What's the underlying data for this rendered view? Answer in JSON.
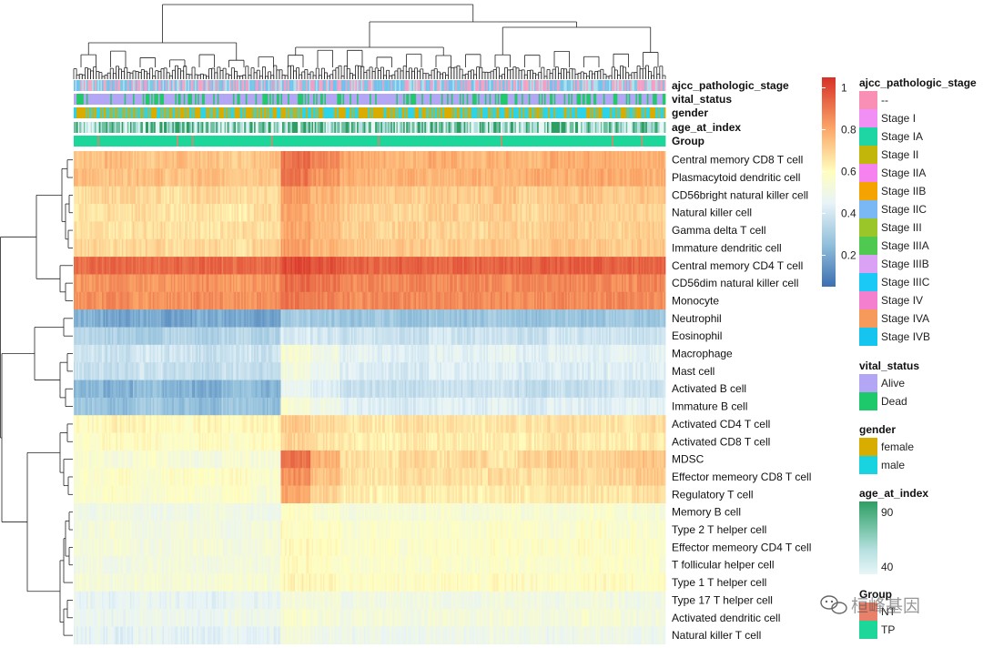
{
  "chart_data": {
    "type": "heatmap",
    "title": "",
    "rows": [
      "Central memory CD8 T cell",
      "Plasmacytoid dendritic cell",
      "CD56bright natural killer cell",
      "Natural killer cell",
      "Gamma delta T cell",
      "Immature dendritic cell",
      "Central memory CD4 T cell",
      "CD56dim natural killer cell",
      "Monocyte",
      "Neutrophil",
      "Eosinophil",
      "Macrophage",
      "Mast cell",
      "Activated B cell",
      "Immature  B cell",
      "Activated CD4 T cell",
      "Activated CD8 T cell",
      "MDSC",
      "Effector memeory CD8 T cell",
      "Regulatory T cell",
      "Memory B cell",
      "Type 2 T helper cell",
      "Effector memeory CD4 T cell",
      "T follicular helper cell",
      "Type 1 T helper cell",
      "Type 17 T helper cell",
      "Activated dendritic cell",
      "Natural killer T cell"
    ],
    "values": [
      [
        0.74,
        0.76,
        0.73,
        0.75,
        0.74,
        0.72,
        0.75,
        0.92,
        0.86,
        0.8,
        0.78,
        0.77,
        0.79,
        0.76,
        0.78,
        0.77,
        0.79,
        0.8,
        0.78,
        0.79
      ],
      [
        0.75,
        0.74,
        0.76,
        0.73,
        0.75,
        0.74,
        0.73,
        0.9,
        0.84,
        0.79,
        0.77,
        0.78,
        0.76,
        0.78,
        0.77,
        0.79,
        0.78,
        0.8,
        0.79,
        0.78
      ],
      [
        0.68,
        0.7,
        0.69,
        0.67,
        0.7,
        0.68,
        0.69,
        0.82,
        0.78,
        0.73,
        0.72,
        0.71,
        0.73,
        0.72,
        0.74,
        0.71,
        0.73,
        0.74,
        0.72,
        0.73
      ],
      [
        0.66,
        0.67,
        0.68,
        0.66,
        0.67,
        0.65,
        0.68,
        0.8,
        0.76,
        0.71,
        0.7,
        0.69,
        0.71,
        0.7,
        0.72,
        0.69,
        0.71,
        0.72,
        0.7,
        0.71
      ],
      [
        0.67,
        0.66,
        0.68,
        0.67,
        0.66,
        0.68,
        0.67,
        0.8,
        0.75,
        0.71,
        0.7,
        0.71,
        0.7,
        0.69,
        0.71,
        0.7,
        0.72,
        0.71,
        0.7,
        0.72
      ],
      [
        0.69,
        0.68,
        0.7,
        0.68,
        0.69,
        0.67,
        0.7,
        0.82,
        0.77,
        0.73,
        0.72,
        0.73,
        0.71,
        0.72,
        0.73,
        0.72,
        0.74,
        0.73,
        0.72,
        0.73
      ],
      [
        0.93,
        0.94,
        0.92,
        0.93,
        0.94,
        0.92,
        0.93,
        1.0,
        0.97,
        0.95,
        0.94,
        0.95,
        0.94,
        0.95,
        0.94,
        0.95,
        0.96,
        0.95,
        0.94,
        0.95
      ],
      [
        0.84,
        0.85,
        0.83,
        0.84,
        0.85,
        0.83,
        0.84,
        0.93,
        0.9,
        0.87,
        0.86,
        0.87,
        0.86,
        0.87,
        0.86,
        0.87,
        0.88,
        0.87,
        0.86,
        0.87
      ],
      [
        0.85,
        0.86,
        0.84,
        0.85,
        0.86,
        0.84,
        0.85,
        0.9,
        0.88,
        0.86,
        0.87,
        0.86,
        0.87,
        0.86,
        0.87,
        0.86,
        0.87,
        0.86,
        0.87,
        0.86
      ],
      [
        0.22,
        0.18,
        0.2,
        0.17,
        0.21,
        0.19,
        0.18,
        0.3,
        0.28,
        0.27,
        0.29,
        0.26,
        0.28,
        0.27,
        0.29,
        0.26,
        0.28,
        0.27,
        0.29,
        0.28
      ],
      [
        0.34,
        0.32,
        0.3,
        0.33,
        0.31,
        0.34,
        0.32,
        0.42,
        0.4,
        0.38,
        0.39,
        0.37,
        0.4,
        0.38,
        0.39,
        0.37,
        0.4,
        0.38,
        0.39,
        0.38
      ],
      [
        0.4,
        0.38,
        0.41,
        0.39,
        0.37,
        0.4,
        0.38,
        0.55,
        0.5,
        0.45,
        0.44,
        0.43,
        0.45,
        0.44,
        0.46,
        0.43,
        0.45,
        0.44,
        0.46,
        0.45
      ],
      [
        0.38,
        0.36,
        0.39,
        0.37,
        0.35,
        0.38,
        0.36,
        0.52,
        0.48,
        0.43,
        0.42,
        0.41,
        0.43,
        0.42,
        0.44,
        0.41,
        0.43,
        0.42,
        0.44,
        0.43
      ],
      [
        0.24,
        0.21,
        0.26,
        0.22,
        0.2,
        0.25,
        0.22,
        0.48,
        0.44,
        0.38,
        0.37,
        0.36,
        0.38,
        0.37,
        0.39,
        0.36,
        0.38,
        0.37,
        0.39,
        0.38
      ],
      [
        0.28,
        0.25,
        0.3,
        0.26,
        0.24,
        0.29,
        0.26,
        0.55,
        0.5,
        0.44,
        0.43,
        0.42,
        0.44,
        0.43,
        0.45,
        0.42,
        0.44,
        0.43,
        0.45,
        0.44
      ],
      [
        0.6,
        0.62,
        0.61,
        0.59,
        0.62,
        0.6,
        0.61,
        0.72,
        0.68,
        0.66,
        0.65,
        0.67,
        0.66,
        0.65,
        0.67,
        0.66,
        0.68,
        0.67,
        0.66,
        0.67
      ],
      [
        0.58,
        0.6,
        0.59,
        0.57,
        0.6,
        0.58,
        0.59,
        0.7,
        0.66,
        0.64,
        0.63,
        0.65,
        0.64,
        0.63,
        0.65,
        0.64,
        0.66,
        0.65,
        0.64,
        0.65
      ],
      [
        0.55,
        0.53,
        0.56,
        0.54,
        0.52,
        0.55,
        0.53,
        0.92,
        0.78,
        0.68,
        0.66,
        0.7,
        0.67,
        0.69,
        0.66,
        0.7,
        0.72,
        0.69,
        0.71,
        0.74
      ],
      [
        0.57,
        0.59,
        0.56,
        0.58,
        0.57,
        0.59,
        0.56,
        0.85,
        0.74,
        0.67,
        0.66,
        0.68,
        0.67,
        0.66,
        0.68,
        0.67,
        0.69,
        0.68,
        0.7,
        0.72
      ],
      [
        0.56,
        0.58,
        0.55,
        0.57,
        0.56,
        0.58,
        0.55,
        0.8,
        0.7,
        0.64,
        0.63,
        0.65,
        0.64,
        0.63,
        0.65,
        0.64,
        0.66,
        0.65,
        0.66,
        0.67
      ],
      [
        0.5,
        0.51,
        0.49,
        0.5,
        0.52,
        0.5,
        0.49,
        0.58,
        0.56,
        0.54,
        0.55,
        0.54,
        0.55,
        0.54,
        0.56,
        0.55,
        0.54,
        0.56,
        0.55,
        0.54
      ],
      [
        0.52,
        0.53,
        0.51,
        0.52,
        0.53,
        0.51,
        0.52,
        0.6,
        0.58,
        0.56,
        0.57,
        0.56,
        0.57,
        0.56,
        0.58,
        0.57,
        0.56,
        0.58,
        0.57,
        0.56
      ],
      [
        0.53,
        0.54,
        0.52,
        0.53,
        0.54,
        0.52,
        0.53,
        0.61,
        0.59,
        0.57,
        0.58,
        0.57,
        0.58,
        0.57,
        0.59,
        0.58,
        0.57,
        0.59,
        0.58,
        0.57
      ],
      [
        0.52,
        0.51,
        0.53,
        0.52,
        0.51,
        0.53,
        0.52,
        0.6,
        0.58,
        0.56,
        0.57,
        0.56,
        0.57,
        0.56,
        0.58,
        0.57,
        0.56,
        0.58,
        0.57,
        0.56
      ],
      [
        0.54,
        0.53,
        0.55,
        0.54,
        0.53,
        0.55,
        0.54,
        0.62,
        0.6,
        0.58,
        0.59,
        0.58,
        0.59,
        0.58,
        0.6,
        0.59,
        0.58,
        0.6,
        0.59,
        0.58
      ],
      [
        0.46,
        0.45,
        0.47,
        0.46,
        0.45,
        0.47,
        0.46,
        0.54,
        0.52,
        0.5,
        0.51,
        0.5,
        0.51,
        0.5,
        0.52,
        0.51,
        0.5,
        0.52,
        0.51,
        0.5
      ],
      [
        0.48,
        0.47,
        0.49,
        0.48,
        0.47,
        0.49,
        0.48,
        0.56,
        0.54,
        0.52,
        0.53,
        0.52,
        0.53,
        0.52,
        0.54,
        0.53,
        0.52,
        0.54,
        0.53,
        0.52
      ],
      [
        0.45,
        0.44,
        0.46,
        0.45,
        0.44,
        0.46,
        0.45,
        0.52,
        0.5,
        0.48,
        0.49,
        0.48,
        0.49,
        0.48,
        0.5,
        0.49,
        0.48,
        0.5,
        0.49,
        0.48
      ]
    ],
    "color_scale": {
      "domain": [
        0.05,
        0.25,
        0.45,
        0.6,
        0.8,
        1.05
      ],
      "colors": [
        "#3b6fb0",
        "#91bfdb",
        "#e8f4f8",
        "#fffebe",
        "#fca96a",
        "#d73027"
      ],
      "ticks": [
        "1",
        "0.8",
        "0.6",
        "0.4",
        "0.2"
      ],
      "tick_values": [
        1,
        0.8,
        0.6,
        0.4,
        0.2
      ]
    },
    "annotation_rows": [
      "ajcc_pathologic_stage",
      "vital_status",
      "gender",
      "age_at_index",
      "Group"
    ],
    "annotation_colors": {
      "ajcc_pathologic_stage": [
        "#f6a6c0",
        "#b0e0ec",
        "#7ec8e3",
        "#f29ec8",
        "#6fc3f0"
      ],
      "vital_status": [
        "#b3a6f5",
        "#b3a6f5",
        "#b3a6f5",
        "#22c96b"
      ],
      "gender": [
        "#d9ad00",
        "#2ed3e6"
      ],
      "age_at_index": [
        "#2e9e63",
        "#6fc0a0",
        "#b6e0e0",
        "#e8f6f6"
      ],
      "Group": [
        "#1dd69a",
        "#e8806a"
      ]
    }
  },
  "legends": [
    {
      "title": "ajcc_pathologic_stage",
      "items": [
        {
          "label": "--",
          "color": "#f98fb4"
        },
        {
          "label": "Stage I",
          "color": "#f28ff5"
        },
        {
          "label": "Stage IA",
          "color": "#1dd6a4"
        },
        {
          "label": "Stage II",
          "color": "#c2b60a"
        },
        {
          "label": "Stage IIA",
          "color": "#f582ee"
        },
        {
          "label": "Stage IIB",
          "color": "#f5a300"
        },
        {
          "label": "Stage IIC",
          "color": "#7ab8f5"
        },
        {
          "label": "Stage III",
          "color": "#9bc62a"
        },
        {
          "label": "Stage IIIA",
          "color": "#4fc94f"
        },
        {
          "label": "Stage IIIB",
          "color": "#dba1f5"
        },
        {
          "label": "Stage IIIC",
          "color": "#1ac9f5"
        },
        {
          "label": "Stage IV",
          "color": "#f57fcf"
        },
        {
          "label": "Stage IVA",
          "color": "#f59a5a"
        },
        {
          "label": "Stage IVB",
          "color": "#16c4f0"
        }
      ]
    },
    {
      "title": "vital_status",
      "items": [
        {
          "label": "Alive",
          "color": "#b3a6f5"
        },
        {
          "label": "Dead",
          "color": "#1dc96b"
        }
      ]
    },
    {
      "title": "gender",
      "items": [
        {
          "label": "female",
          "color": "#d9ad00"
        },
        {
          "label": "male",
          "color": "#1ad3e0"
        }
      ]
    },
    {
      "title": "age_at_index",
      "gradient": [
        "#2e9e63",
        "#6fc0a0",
        "#b6e0e0",
        "#e8f6f6"
      ],
      "labels": [
        "90",
        "40"
      ]
    },
    {
      "title": "Group",
      "items": [
        {
          "label": "NT",
          "color": "#e8806a"
        },
        {
          "label": "TP",
          "color": "#1dd69a"
        }
      ]
    }
  ],
  "watermark": {
    "icon": "wechat-icon",
    "text": "桓峰基因"
  }
}
